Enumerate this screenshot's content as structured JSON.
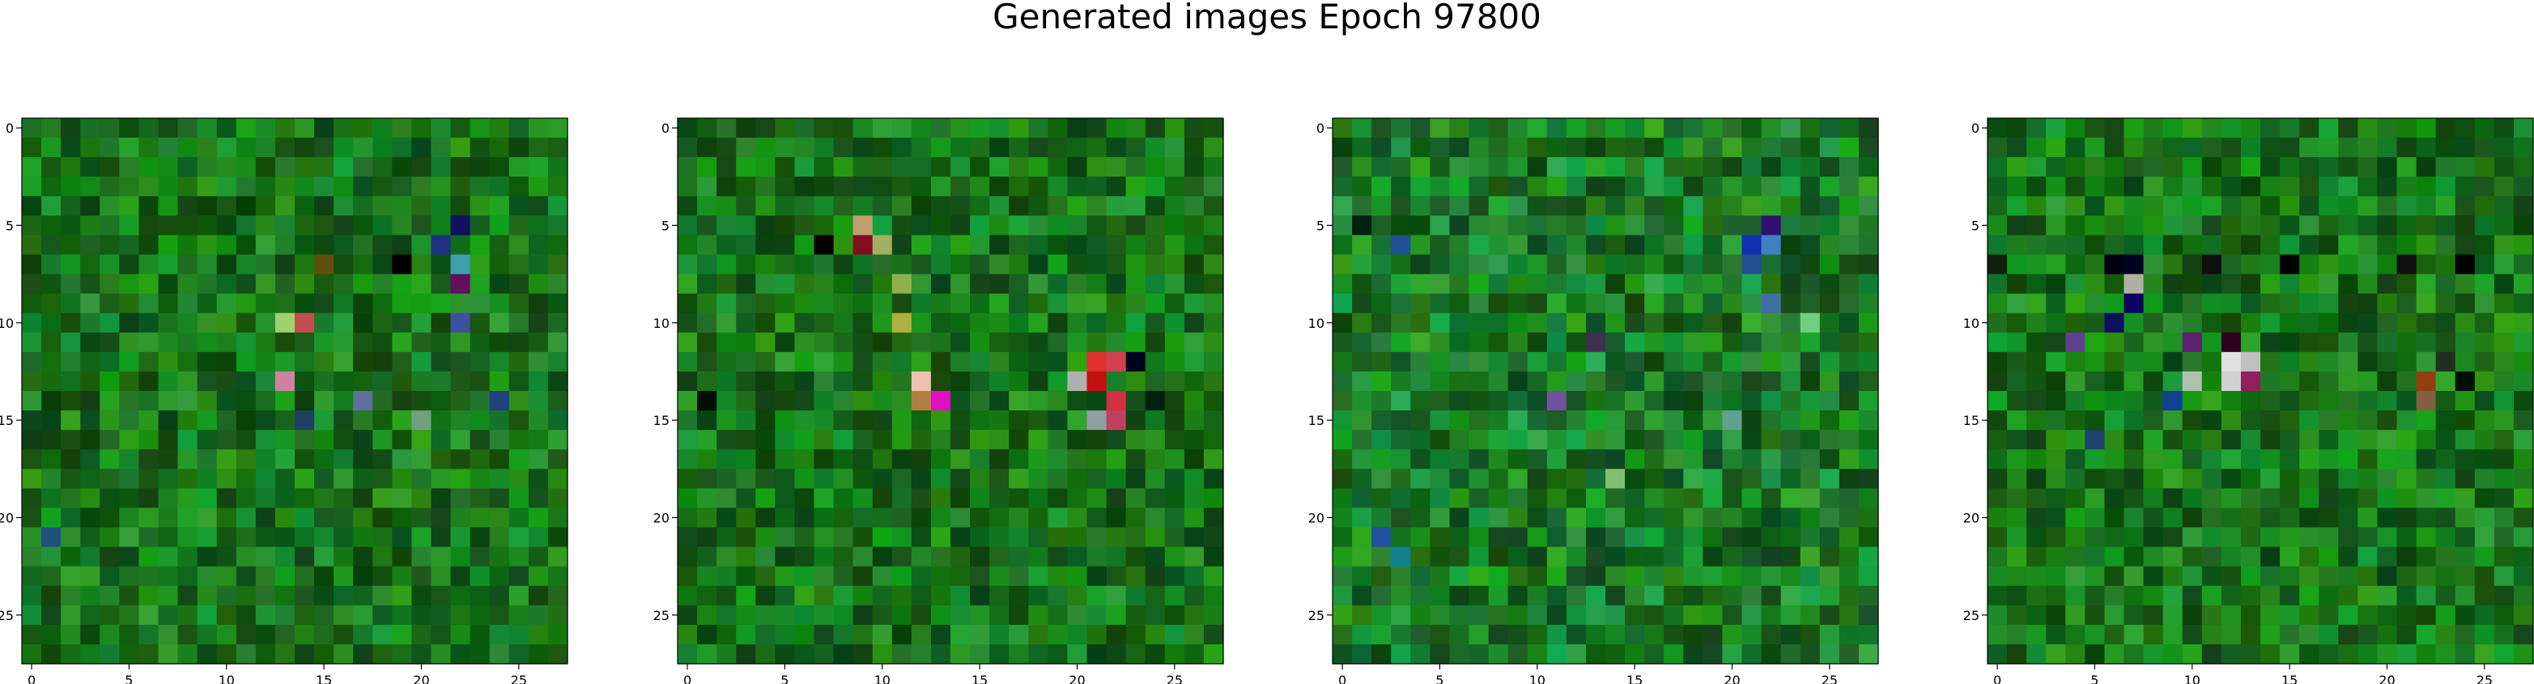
{
  "figure": {
    "title": "Generated images Epoch 97800"
  },
  "chart_data": [
    {
      "type": "heatmap",
      "x_ticks": [
        0,
        5,
        10,
        15,
        20,
        25
      ],
      "y_ticks": [
        0,
        5,
        10,
        15,
        20,
        25
      ],
      "xlim": [
        -0.5,
        27.5
      ],
      "ylim": [
        27.5,
        -0.5
      ],
      "grid_size": [
        28,
        28
      ],
      "seed": 11,
      "base_color": "#1f8a1f",
      "highlights": [
        {
          "x": 14,
          "y": 10,
          "color": "#c05050"
        },
        {
          "x": 13,
          "y": 10,
          "color": "#a0d070"
        },
        {
          "x": 13,
          "y": 13,
          "color": "#d080a0"
        },
        {
          "x": 22,
          "y": 5,
          "color": "#101060"
        },
        {
          "x": 22,
          "y": 7,
          "color": "#40a0b0"
        },
        {
          "x": 21,
          "y": 6,
          "color": "#203080"
        },
        {
          "x": 22,
          "y": 8,
          "color": "#601060"
        },
        {
          "x": 22,
          "y": 10,
          "color": "#4050a0"
        },
        {
          "x": 19,
          "y": 7,
          "color": "#000000"
        },
        {
          "x": 17,
          "y": 14,
          "color": "#6070a0"
        },
        {
          "x": 24,
          "y": 14,
          "color": "#204080"
        },
        {
          "x": 14,
          "y": 15,
          "color": "#204060"
        },
        {
          "x": 20,
          "y": 15,
          "color": "#70a080"
        },
        {
          "x": 1,
          "y": 21,
          "color": "#205080"
        },
        {
          "x": 15,
          "y": 7,
          "color": "#605010"
        }
      ]
    },
    {
      "type": "heatmap",
      "x_ticks": [
        0,
        5,
        10,
        15,
        20,
        25
      ],
      "y_ticks": [
        0,
        5,
        10,
        15,
        20,
        25
      ],
      "xlim": [
        -0.5,
        27.5
      ],
      "ylim": [
        27.5,
        -0.5
      ],
      "grid_size": [
        28,
        28
      ],
      "seed": 23,
      "base_color": "#1e8a1e",
      "highlights": [
        {
          "x": 9,
          "y": 5,
          "color": "#c0a070"
        },
        {
          "x": 9,
          "y": 6,
          "color": "#801020"
        },
        {
          "x": 10,
          "y": 6,
          "color": "#a0b060"
        },
        {
          "x": 7,
          "y": 6,
          "color": "#000000"
        },
        {
          "x": 11,
          "y": 8,
          "color": "#90b050"
        },
        {
          "x": 11,
          "y": 10,
          "color": "#b0b040"
        },
        {
          "x": 12,
          "y": 13,
          "color": "#f0c0b0"
        },
        {
          "x": 13,
          "y": 14,
          "color": "#e010c0"
        },
        {
          "x": 12,
          "y": 14,
          "color": "#b08040"
        },
        {
          "x": 21,
          "y": 12,
          "color": "#e03030"
        },
        {
          "x": 22,
          "y": 12,
          "color": "#d04050"
        },
        {
          "x": 21,
          "y": 13,
          "color": "#c01010"
        },
        {
          "x": 22,
          "y": 14,
          "color": "#d03040"
        },
        {
          "x": 20,
          "y": 13,
          "color": "#b0b0b0"
        },
        {
          "x": 21,
          "y": 15,
          "color": "#90a0a0"
        },
        {
          "x": 23,
          "y": 12,
          "color": "#000020"
        },
        {
          "x": 24,
          "y": 14,
          "color": "#002010"
        },
        {
          "x": 22,
          "y": 15,
          "color": "#c04060"
        },
        {
          "x": 1,
          "y": 14,
          "color": "#001000"
        }
      ]
    },
    {
      "type": "heatmap",
      "x_ticks": [
        0,
        5,
        10,
        15,
        20,
        25
      ],
      "y_ticks": [
        0,
        5,
        10,
        15,
        20,
        25
      ],
      "xlim": [
        -0.5,
        27.5
      ],
      "ylim": [
        27.5,
        -0.5
      ],
      "grid_size": [
        28,
        28
      ],
      "seed": 37,
      "base_color": "#22902a",
      "highlights": [
        {
          "x": 22,
          "y": 5,
          "color": "#301070"
        },
        {
          "x": 21,
          "y": 6,
          "color": "#1030b0"
        },
        {
          "x": 22,
          "y": 6,
          "color": "#4080c0"
        },
        {
          "x": 21,
          "y": 7,
          "color": "#205090"
        },
        {
          "x": 22,
          "y": 9,
          "color": "#4070a0"
        },
        {
          "x": 3,
          "y": 6,
          "color": "#205090"
        },
        {
          "x": 13,
          "y": 11,
          "color": "#403050"
        },
        {
          "x": 11,
          "y": 14,
          "color": "#7050a0"
        },
        {
          "x": 2,
          "y": 21,
          "color": "#2050a0"
        },
        {
          "x": 3,
          "y": 22,
          "color": "#108090"
        },
        {
          "x": 20,
          "y": 15,
          "color": "#60a090"
        },
        {
          "x": 24,
          "y": 10,
          "color": "#70d080"
        },
        {
          "x": 1,
          "y": 5,
          "color": "#002010"
        },
        {
          "x": 14,
          "y": 18,
          "color": "#80c070"
        }
      ]
    },
    {
      "type": "heatmap",
      "x_ticks": [
        0,
        5,
        10,
        15,
        20,
        25
      ],
      "y_ticks": [
        0,
        5,
        10,
        15,
        20,
        25
      ],
      "xlim": [
        -0.5,
        27.5
      ],
      "ylim": [
        27.5,
        -0.5
      ],
      "grid_size": [
        28,
        28
      ],
      "seed": 51,
      "base_color": "#1e8c1e",
      "highlights": [
        {
          "x": 6,
          "y": 7,
          "color": "#000010"
        },
        {
          "x": 7,
          "y": 7,
          "color": "#000020"
        },
        {
          "x": 7,
          "y": 8,
          "color": "#b0b0a0"
        },
        {
          "x": 7,
          "y": 9,
          "color": "#100060"
        },
        {
          "x": 4,
          "y": 11,
          "color": "#604090"
        },
        {
          "x": 6,
          "y": 10,
          "color": "#101060"
        },
        {
          "x": 10,
          "y": 11,
          "color": "#602070"
        },
        {
          "x": 12,
          "y": 11,
          "color": "#300020"
        },
        {
          "x": 12,
          "y": 12,
          "color": "#e0e0e0"
        },
        {
          "x": 13,
          "y": 12,
          "color": "#c0c0c0"
        },
        {
          "x": 13,
          "y": 13,
          "color": "#902060"
        },
        {
          "x": 12,
          "y": 13,
          "color": "#d0d0d0"
        },
        {
          "x": 10,
          "y": 13,
          "color": "#b0c0b0"
        },
        {
          "x": 9,
          "y": 14,
          "color": "#104090"
        },
        {
          "x": 5,
          "y": 16,
          "color": "#204070"
        },
        {
          "x": 22,
          "y": 13,
          "color": "#904010"
        },
        {
          "x": 22,
          "y": 14,
          "color": "#806040"
        },
        {
          "x": 23,
          "y": 12,
          "color": "#203020"
        },
        {
          "x": 24,
          "y": 13,
          "color": "#001000"
        },
        {
          "x": 11,
          "y": 7,
          "color": "#101010"
        },
        {
          "x": 15,
          "y": 7,
          "color": "#000000"
        },
        {
          "x": 21,
          "y": 7,
          "color": "#101010"
        },
        {
          "x": 24,
          "y": 7,
          "color": "#000000"
        },
        {
          "x": 0,
          "y": 7,
          "color": "#102010"
        }
      ]
    }
  ]
}
